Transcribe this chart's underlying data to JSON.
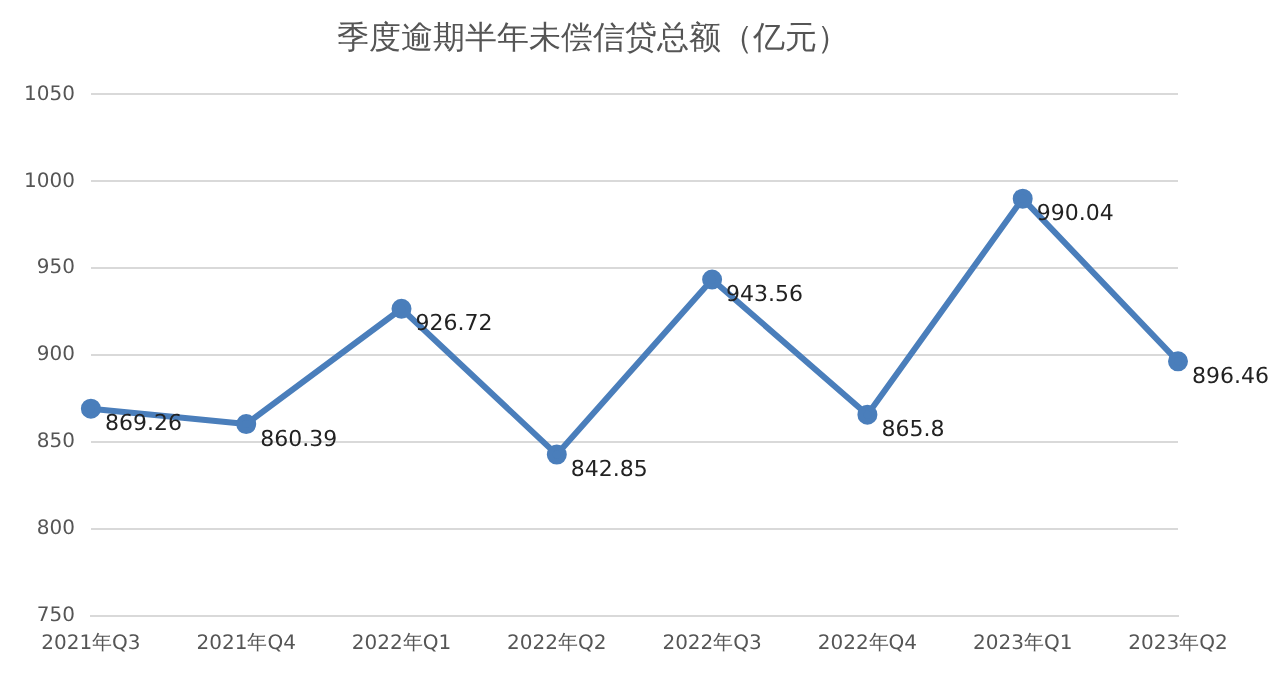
{
  "chart_data": {
    "type": "line",
    "title": "季度逾期半年未偿信贷总额（亿元）",
    "categories": [
      "2021年Q3",
      "2021年Q4",
      "2022年Q1",
      "2022年Q2",
      "2022年Q3",
      "2022年Q4",
      "2023年Q1",
      "2023年Q2"
    ],
    "series": [
      {
        "color": "#4a7ebb",
        "values": [
          869.26,
          860.39,
          926.72,
          842.85,
          943.56,
          865.8,
          990.04,
          896.46
        ]
      }
    ],
    "ylim": [
      750,
      1050
    ],
    "yticks": [
      750,
      800,
      850,
      900,
      950,
      1000,
      1050
    ],
    "grid": "y",
    "legend": false,
    "marker": "circle",
    "line_style": "solid",
    "data_labels": true
  }
}
